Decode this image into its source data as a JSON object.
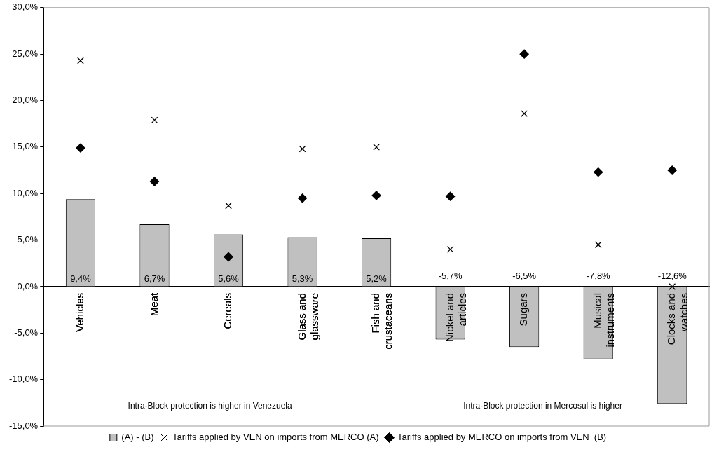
{
  "chart_data": {
    "type": "bar",
    "categories": [
      "Vehicles",
      "Meat",
      "Cereals",
      "Glass and glassware",
      "Fish and crustaceans",
      "Nickel and articles",
      "Sugars",
      "Musical instruments",
      "Clocks and watches"
    ],
    "series": [
      {
        "name": "(A) - (B)",
        "color": "#c0c0c0",
        "values": [
          9.4,
          6.7,
          5.6,
          5.3,
          5.2,
          -5.7,
          -6.5,
          -7.8,
          -12.6
        ],
        "value_labels": [
          "9,4%",
          "6,7%",
          "5,6%",
          "5,3%",
          "5,2%",
          "-5,7%",
          "-6,5%",
          "-7,8%",
          "-12,6%"
        ]
      },
      {
        "name": "Tariffs applied by VEN on imports from MERCO (A)",
        "type": "scatter",
        "marker": "cross",
        "color": "#000000",
        "x": [
          "Vehicles",
          "Meat",
          "Cereals",
          "Glass and glassware",
          "Fish and crustaceans",
          "Nickel and articles",
          "Sugars",
          "Musical instruments",
          "Clocks and watches"
        ],
        "values": [
          24.3,
          17.9,
          8.7,
          14.8,
          15.0,
          4.0,
          18.6,
          4.5,
          0.0
        ]
      },
      {
        "name": "Tariffs applied by MERCO on imports from VEN  (B)",
        "type": "scatter",
        "marker": "diamond",
        "color": "#000000",
        "x": [
          "Vehicles",
          "Meat",
          "Cereals",
          "Glass and glassware",
          "Fish and crustaceans",
          "Nickel and articles",
          "Sugars",
          "Musical instruments",
          "Clocks and watches"
        ],
        "values": [
          14.9,
          11.3,
          3.2,
          9.5,
          9.8,
          9.7,
          25.0,
          12.3,
          12.5
        ]
      }
    ],
    "ylim": [
      -15,
      30
    ],
    "yticks": [
      {
        "value": -15,
        "label": "-15,0%"
      },
      {
        "value": -10,
        "label": "-10,0%"
      },
      {
        "value": -5,
        "label": "-5,0%"
      },
      {
        "value": 0,
        "label": "0,0%"
      },
      {
        "value": 5,
        "label": "5,0%"
      },
      {
        "value": 10,
        "label": "10,0%"
      },
      {
        "value": 15,
        "label": "15,0%"
      },
      {
        "value": 20,
        "label": "20,0%"
      },
      {
        "value": 25,
        "label": "25,0%"
      },
      {
        "value": 30,
        "label": "30,0%"
      }
    ],
    "annotations": [
      "Intra-Block protection is higher in Venezuela",
      "Intra-Block protection in Mercosul is higher"
    ],
    "legend": "bottom",
    "grid": false
  }
}
